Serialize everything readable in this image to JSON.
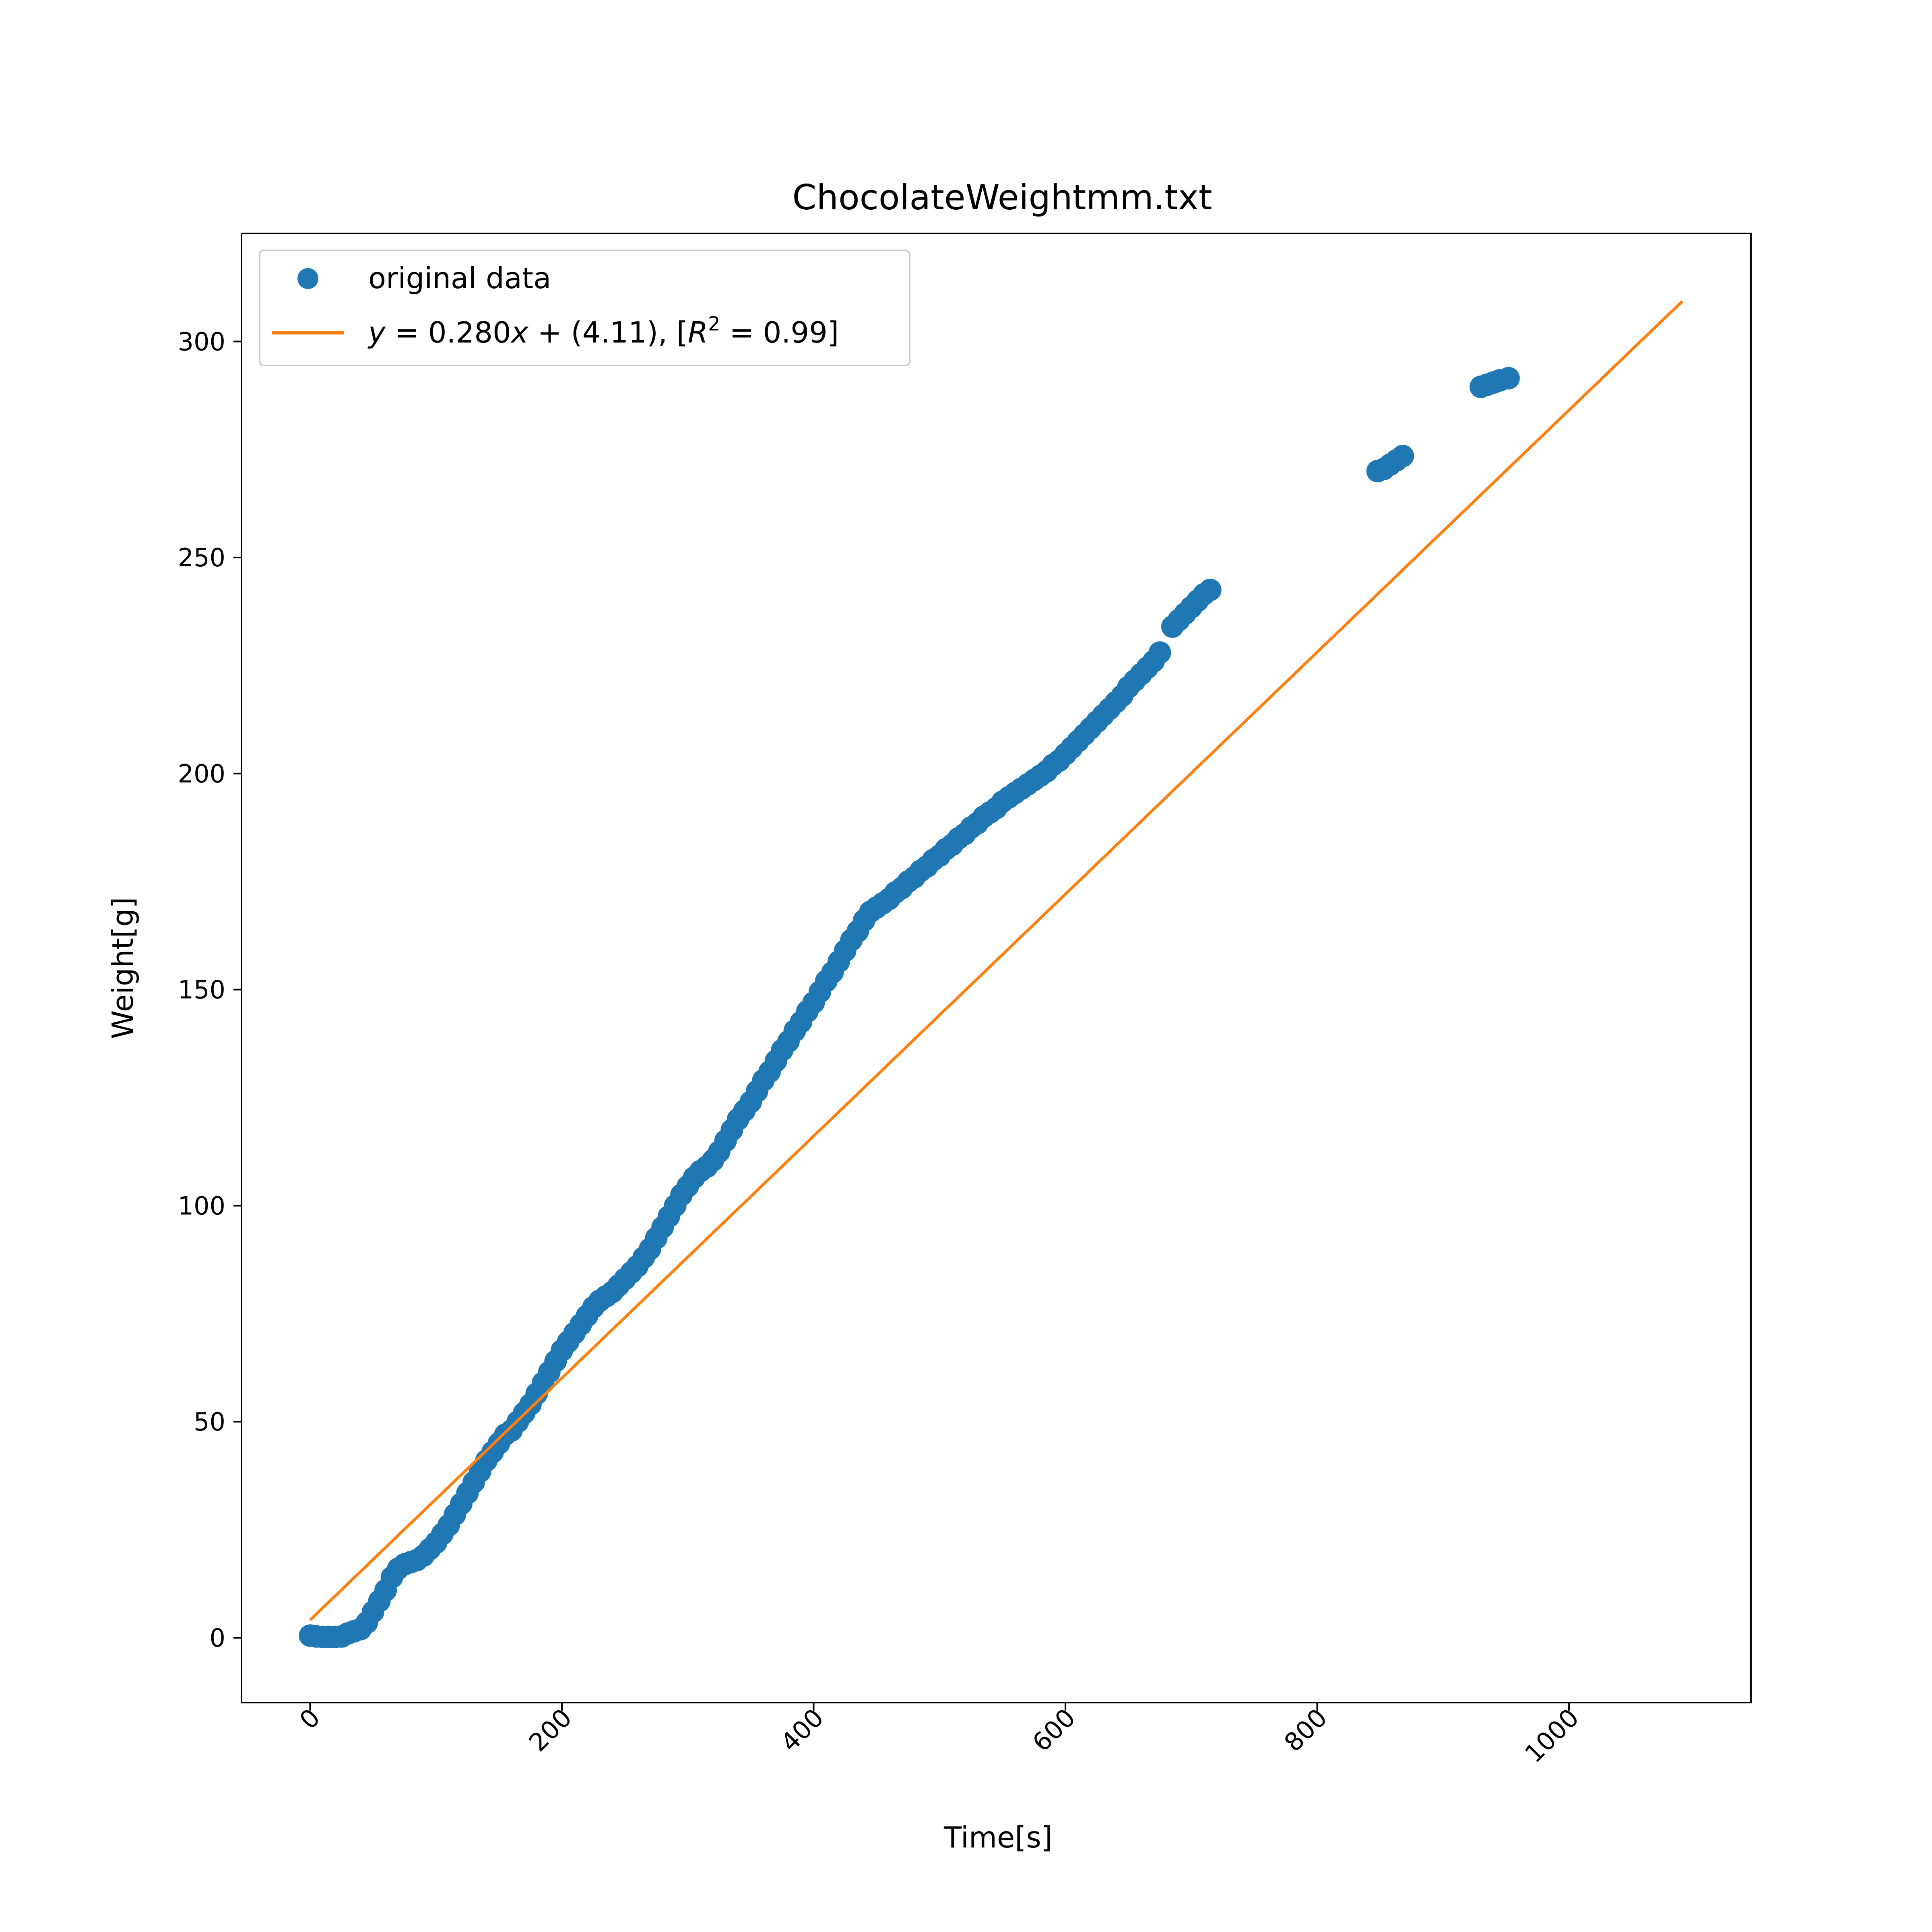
{
  "chart_data": {
    "type": "scatter",
    "title": "ChocolateWeightmm.txt",
    "xlabel": "Time[s]",
    "ylabel": "Weight[g]",
    "xlim": [
      -54.5,
      1144.5
    ],
    "ylim": [
      -15,
      325
    ],
    "x_ticks": [
      0,
      200,
      400,
      600,
      800,
      1000
    ],
    "x_tick_labels": [
      "0",
      "200",
      "400",
      "600",
      "800",
      "1000"
    ],
    "y_ticks": [
      0,
      50,
      100,
      150,
      200,
      250,
      300
    ],
    "y_tick_labels": [
      "0",
      "50",
      "100",
      "150",
      "200",
      "250",
      "300"
    ],
    "grid": false,
    "legend_position": "top-left",
    "series": [
      {
        "name": "original data",
        "kind": "scatter",
        "color": "#1f77b4",
        "points": [
          [
            0,
            0.5
          ],
          [
            5,
            0.3
          ],
          [
            10,
            0.2
          ],
          [
            15,
            0.2
          ],
          [
            20,
            0.2
          ],
          [
            25,
            0.3
          ],
          [
            30,
            1.0
          ],
          [
            35,
            1.5
          ],
          [
            40,
            2.0
          ],
          [
            45,
            3.5
          ],
          [
            50,
            6.0
          ],
          [
            55,
            8.5
          ],
          [
            60,
            11.0
          ],
          [
            65,
            14.0
          ],
          [
            70,
            16.0
          ],
          [
            75,
            17.0
          ],
          [
            80,
            17.5
          ],
          [
            85,
            18.0
          ],
          [
            90,
            19.0
          ],
          [
            95,
            20.5
          ],
          [
            100,
            22.0
          ],
          [
            105,
            24.0
          ],
          [
            110,
            26.0
          ],
          [
            115,
            28.5
          ],
          [
            120,
            31.0
          ],
          [
            125,
            33.5
          ],
          [
            130,
            36.0
          ],
          [
            135,
            38.5
          ],
          [
            140,
            41.0
          ],
          [
            145,
            43.0
          ],
          [
            150,
            45.0
          ],
          [
            155,
            47.0
          ],
          [
            160,
            48.0
          ],
          [
            165,
            50.0
          ],
          [
            170,
            52.0
          ],
          [
            175,
            54.0
          ],
          [
            180,
            56.5
          ],
          [
            185,
            59.0
          ],
          [
            190,
            61.5
          ],
          [
            195,
            64.0
          ],
          [
            200,
            66.5
          ],
          [
            205,
            68.5
          ],
          [
            210,
            70.5
          ],
          [
            215,
            72.5
          ],
          [
            220,
            74.5
          ],
          [
            225,
            76.5
          ],
          [
            230,
            78.0
          ],
          [
            235,
            79.0
          ],
          [
            240,
            80.0
          ],
          [
            245,
            81.5
          ],
          [
            250,
            83.0
          ],
          [
            255,
            84.5
          ],
          [
            260,
            86.0
          ],
          [
            265,
            88.0
          ],
          [
            270,
            90.0
          ],
          [
            275,
            92.5
          ],
          [
            280,
            95.0
          ],
          [
            285,
            97.5
          ],
          [
            290,
            100.0
          ],
          [
            295,
            102.5
          ],
          [
            300,
            104.5
          ],
          [
            305,
            106.5
          ],
          [
            310,
            108.0
          ],
          [
            315,
            109.0
          ],
          [
            320,
            110.5
          ],
          [
            325,
            112.5
          ],
          [
            330,
            115.0
          ],
          [
            335,
            117.5
          ],
          [
            340,
            120.0
          ],
          [
            345,
            122.0
          ],
          [
            350,
            124.0
          ],
          [
            355,
            126.5
          ],
          [
            360,
            129.0
          ],
          [
            365,
            131.0
          ],
          [
            370,
            133.5
          ],
          [
            375,
            136.0
          ],
          [
            380,
            138.0
          ],
          [
            385,
            140.5
          ],
          [
            390,
            142.5
          ],
          [
            395,
            145.0
          ],
          [
            400,
            147.0
          ],
          [
            405,
            149.5
          ],
          [
            410,
            152.0
          ],
          [
            415,
            154.0
          ],
          [
            420,
            156.5
          ],
          [
            425,
            159.0
          ],
          [
            430,
            161.5
          ],
          [
            435,
            163.5
          ],
          [
            440,
            166.0
          ],
          [
            445,
            168.0
          ],
          [
            450,
            169.0
          ],
          [
            455,
            170.0
          ],
          [
            460,
            171.0
          ],
          [
            465,
            172.5
          ],
          [
            470,
            173.5
          ],
          [
            475,
            175.0
          ],
          [
            480,
            176.0
          ],
          [
            485,
            177.5
          ],
          [
            490,
            178.5
          ],
          [
            495,
            180.0
          ],
          [
            500,
            181.0
          ],
          [
            505,
            182.5
          ],
          [
            510,
            183.5
          ],
          [
            515,
            185.0
          ],
          [
            520,
            186.0
          ],
          [
            525,
            187.5
          ],
          [
            530,
            188.5
          ],
          [
            535,
            190.0
          ],
          [
            540,
            191.0
          ],
          [
            545,
            192.0
          ],
          [
            550,
            193.5
          ],
          [
            555,
            194.5
          ],
          [
            560,
            195.5
          ],
          [
            565,
            196.5
          ],
          [
            570,
            197.5
          ],
          [
            575,
            198.5
          ],
          [
            580,
            199.5
          ],
          [
            585,
            200.5
          ],
          [
            590,
            202.0
          ],
          [
            595,
            203.0
          ],
          [
            600,
            204.5
          ],
          [
            605,
            206.0
          ],
          [
            610,
            207.5
          ],
          [
            615,
            209.0
          ],
          [
            620,
            210.5
          ],
          [
            625,
            212.0
          ],
          [
            630,
            213.5
          ],
          [
            635,
            215.0
          ],
          [
            640,
            216.5
          ],
          [
            645,
            218.0
          ],
          [
            650,
            220.0
          ],
          [
            655,
            221.5
          ],
          [
            660,
            223.0
          ],
          [
            665,
            224.5
          ],
          [
            670,
            226.0
          ],
          [
            675,
            228.0
          ],
          [
            685,
            234.0
          ],
          [
            690,
            235.5
          ],
          [
            695,
            237.0
          ],
          [
            700,
            238.5
          ],
          [
            705,
            240.0
          ],
          [
            710,
            241.5
          ],
          [
            715,
            242.5
          ],
          [
            848,
            270.0
          ],
          [
            853,
            270.5
          ],
          [
            858,
            271.5
          ],
          [
            863,
            272.5
          ],
          [
            868,
            273.5
          ],
          [
            930,
            289.5
          ],
          [
            935,
            290.0
          ],
          [
            940,
            290.5
          ],
          [
            945,
            291.0
          ],
          [
            952,
            291.5
          ]
        ]
      },
      {
        "name": "$y = 0.280x + (4.11)$, [$R^2 = 0.99$]",
        "kind": "line",
        "color": "#ff7f0e",
        "x": [
          0,
          1090
        ],
        "y": [
          4.11,
          309.31
        ]
      }
    ]
  }
}
